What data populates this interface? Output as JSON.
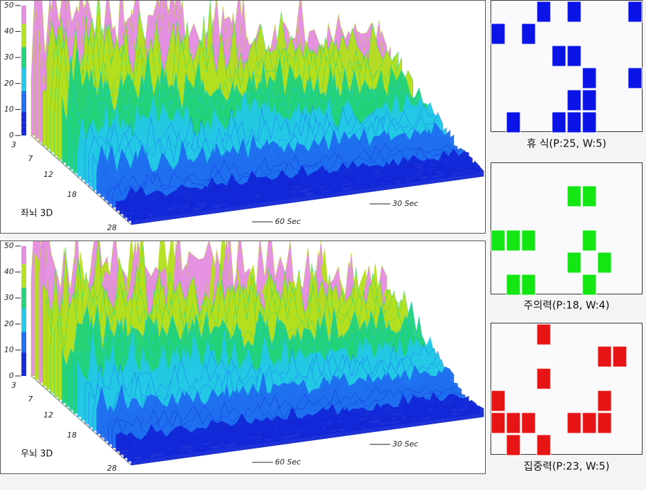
{
  "panels_3d": [
    {
      "label": "좌뇌 3D",
      "z_ticks": [
        "0",
        "10",
        "20",
        "30",
        "40",
        "50"
      ],
      "depth_ticks": [
        "3",
        "7",
        "12",
        "18",
        "28"
      ],
      "time_ticks": [
        "30 Sec",
        "60 Sec"
      ]
    },
    {
      "label": "우뇌 3D",
      "z_ticks": [
        "0",
        "10",
        "20",
        "30",
        "40",
        "50"
      ],
      "depth_ticks": [
        "3",
        "7",
        "12",
        "18",
        "28"
      ],
      "time_ticks": [
        "30 Sec",
        "60 Sec"
      ]
    }
  ],
  "grids": [
    {
      "caption": "휴 식(P:25, W:5)"
    },
    {
      "caption": "주의력(P:18, W:4)"
    },
    {
      "caption": "집중력(P:23, W:5)"
    }
  ]
}
